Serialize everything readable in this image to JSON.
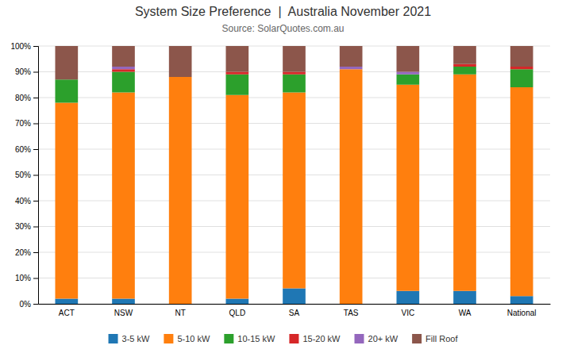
{
  "chart_data": {
    "type": "bar",
    "stacked": true,
    "title": "System Size Preference  |  Australia November 2021",
    "subtitle": "Source: SolarQuotes.com.au",
    "categories": [
      "ACT",
      "NSW",
      "NT",
      "QLD",
      "SA",
      "TAS",
      "VIC",
      "WA",
      "National"
    ],
    "series": [
      {
        "name": "3-5 kW",
        "values": [
          2,
          2,
          0,
          2,
          6,
          0,
          5,
          5,
          3
        ]
      },
      {
        "name": "5-10 kW",
        "values": [
          76,
          80,
          88,
          79,
          76,
          91,
          80,
          84,
          81
        ]
      },
      {
        "name": "10-15 kW",
        "values": [
          9,
          8,
          0,
          8,
          7,
          0,
          4,
          3,
          7
        ]
      },
      {
        "name": "15-20 kW",
        "values": [
          0,
          1,
          0,
          1,
          1,
          0,
          0,
          1,
          1
        ]
      },
      {
        "name": "20+ kW",
        "values": [
          0,
          1,
          0,
          0,
          0,
          1,
          1,
          0,
          0
        ]
      },
      {
        "name": "Fill Roof",
        "values": [
          13,
          8,
          12,
          10,
          10,
          8,
          10,
          7,
          8
        ]
      }
    ],
    "ylim": [
      0,
      100
    ],
    "yticks": [
      {
        "value": 0,
        "label": "0%"
      },
      {
        "value": 10,
        "label": "10%"
      },
      {
        "value": 20,
        "label": "20%"
      },
      {
        "value": 30,
        "label": "30%"
      },
      {
        "value": 40,
        "label": "40%"
      },
      {
        "value": 50,
        "label": "50%"
      },
      {
        "value": 60,
        "label": "60%"
      },
      {
        "value": 70,
        "label": "70%"
      },
      {
        "value": 80,
        "label": "80%"
      },
      {
        "value": 90,
        "label": "90%"
      },
      {
        "value": 100,
        "label": "100%"
      }
    ],
    "grid": true,
    "legend": "bottom"
  }
}
